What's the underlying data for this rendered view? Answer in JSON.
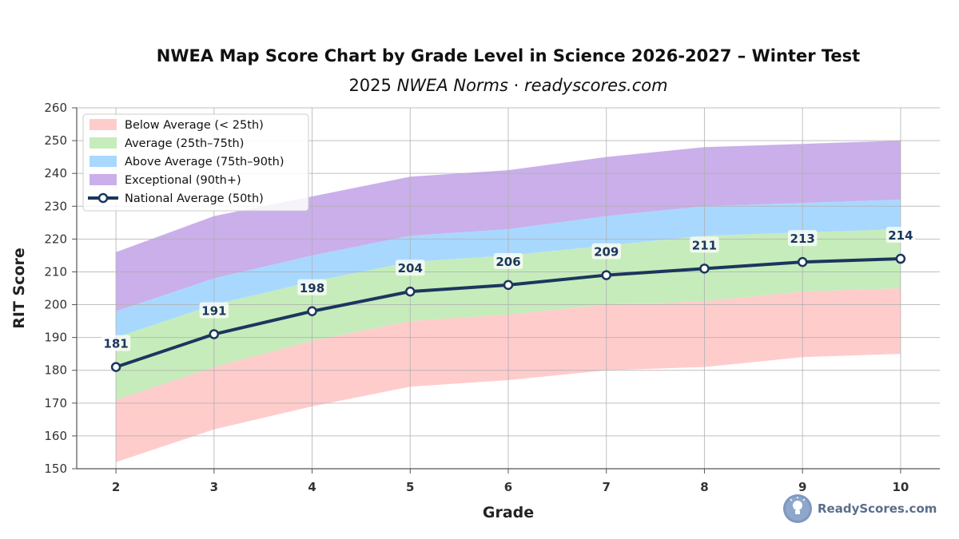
{
  "chart_data": {
    "type": "area",
    "title": "NWEA Map Score Chart by Grade Level in Science 2026-2027 – Winter Test",
    "subtitle": {
      "year": "2025",
      "norms": "NWEA Norms",
      "separator": "·",
      "site": "readyscores.com"
    },
    "xlabel": "Grade",
    "ylabel": "RIT Score",
    "x": [
      2,
      3,
      4,
      5,
      6,
      7,
      8,
      9,
      10
    ],
    "xlim": [
      1.6,
      10.4
    ],
    "ylim": [
      150,
      260
    ],
    "yticks": [
      150,
      160,
      170,
      180,
      190,
      200,
      210,
      220,
      230,
      240,
      250,
      260
    ],
    "grid": true,
    "legend_position": "top-left",
    "bands": [
      {
        "name": "Below Average (< 25th)",
        "color": "#ffcccc",
        "lower": [
          152,
          162,
          169,
          175,
          177,
          180,
          181,
          184,
          185
        ],
        "upper": [
          171,
          181,
          189,
          195,
          197,
          200,
          201,
          204,
          205
        ]
      },
      {
        "name": "Average (25th–75th)",
        "color": "#c6ecbb",
        "lower": [
          171,
          181,
          189,
          195,
          197,
          200,
          201,
          204,
          205
        ],
        "upper": [
          190,
          200,
          207,
          213,
          215,
          218,
          221,
          222,
          223
        ]
      },
      {
        "name": "Above Average (75th–90th)",
        "color": "#a9d8ff",
        "lower": [
          190,
          200,
          207,
          213,
          215,
          218,
          221,
          222,
          223
        ],
        "upper": [
          198,
          208,
          215,
          221,
          223,
          227,
          230,
          231,
          232
        ]
      },
      {
        "name": "Exceptional (90th+)",
        "color": "#caafea",
        "lower": [
          198,
          208,
          215,
          221,
          223,
          227,
          230,
          231,
          232
        ],
        "upper": [
          216,
          227,
          233,
          239,
          241,
          245,
          248,
          249,
          250
        ]
      }
    ],
    "series": [
      {
        "name": "National Average (50th)",
        "color": "#1b365d",
        "values": [
          181,
          191,
          198,
          204,
          206,
          209,
          211,
          213,
          214
        ]
      }
    ]
  },
  "brand": {
    "name": "ReadyScores.com",
    "icon": "lightbulb-icon"
  }
}
